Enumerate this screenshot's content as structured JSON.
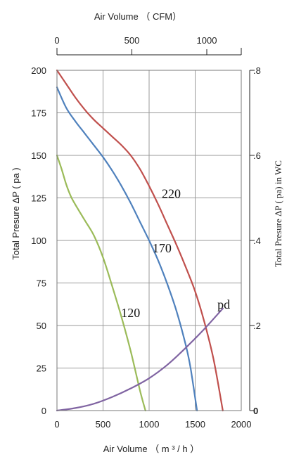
{
  "chart_data": {
    "type": "line",
    "x_axis_bottom": {
      "label": "Air Volume （ m ³ / h ）",
      "range": [
        0,
        2000
      ],
      "ticks": [
        0,
        500,
        1000,
        1500,
        2000
      ],
      "tick_labels": [
        "0",
        "500",
        "1000",
        "1500",
        "2000"
      ]
    },
    "x_axis_top": {
      "label": "Air Volume （ CFM）",
      "ticks_cfm": [
        0,
        500,
        1000
      ],
      "tick_labels": [
        "0",
        "500",
        "1000"
      ],
      "range_cfm": [
        0,
        1230
      ]
    },
    "y_axis_left": {
      "label": "Total Presure  ΔP ( pa )",
      "range": [
        0,
        200
      ],
      "ticks": [
        0,
        25,
        50,
        75,
        100,
        125,
        150,
        175,
        200
      ],
      "tick_labels": [
        "0",
        "25",
        "50",
        "75",
        "100",
        "125",
        "150",
        "175",
        "200"
      ]
    },
    "y_axis_right": {
      "label": "Total Presure  ΔP ( pa) in WC",
      "range_inwc": [
        0,
        0.8
      ],
      "ticks_inwc": [
        0,
        0.2,
        0.4,
        0.6,
        0.8
      ],
      "tick_labels": [
        "0",
        ".2",
        ".4",
        ".6",
        ".8"
      ]
    },
    "grid": true,
    "series": [
      {
        "name": "220",
        "color": "#c0504d",
        "x": [
          0,
          100,
          200,
          300,
          400,
          500,
          600,
          700,
          800,
          900,
          1000,
          1100,
          1200,
          1300,
          1400,
          1500,
          1600,
          1700,
          1800
        ],
        "y": [
          200,
          192,
          184,
          177,
          171,
          166,
          161,
          156,
          150,
          142,
          132,
          121,
          109,
          97,
          84,
          70,
          52,
          30,
          0
        ]
      },
      {
        "name": "170",
        "color": "#4f81bd",
        "x": [
          0,
          100,
          200,
          300,
          400,
          500,
          600,
          700,
          800,
          900,
          1000,
          1100,
          1200,
          1300,
          1400,
          1450,
          1520
        ],
        "y": [
          190,
          178,
          170,
          163,
          156,
          149,
          141,
          132,
          122,
          111,
          100,
          88,
          74,
          58,
          38,
          25,
          0
        ]
      },
      {
        "name": "120",
        "color": "#9bbb59",
        "x": [
          0,
          50,
          100,
          150,
          200,
          300,
          400,
          500,
          600,
          700,
          800,
          900,
          960
        ],
        "y": [
          150,
          142,
          133,
          126,
          121,
          112,
          103,
          90,
          73,
          55,
          35,
          12,
          0
        ]
      },
      {
        "name": "pd",
        "color": "#8064a2",
        "x": [
          0,
          200,
          400,
          600,
          800,
          1000,
          1200,
          1400,
          1600,
          1800
        ],
        "y": [
          0,
          1.5,
          4,
          8,
          13,
          19,
          27,
          37,
          48,
          60
        ]
      }
    ],
    "labels": [
      {
        "text": "220",
        "x": 1240,
        "y": 125
      },
      {
        "text": "170",
        "x": 1140,
        "y": 93
      },
      {
        "text": "120",
        "x": 800,
        "y": 55
      },
      {
        "text": "pd",
        "x": 1810,
        "y": 60
      }
    ]
  }
}
